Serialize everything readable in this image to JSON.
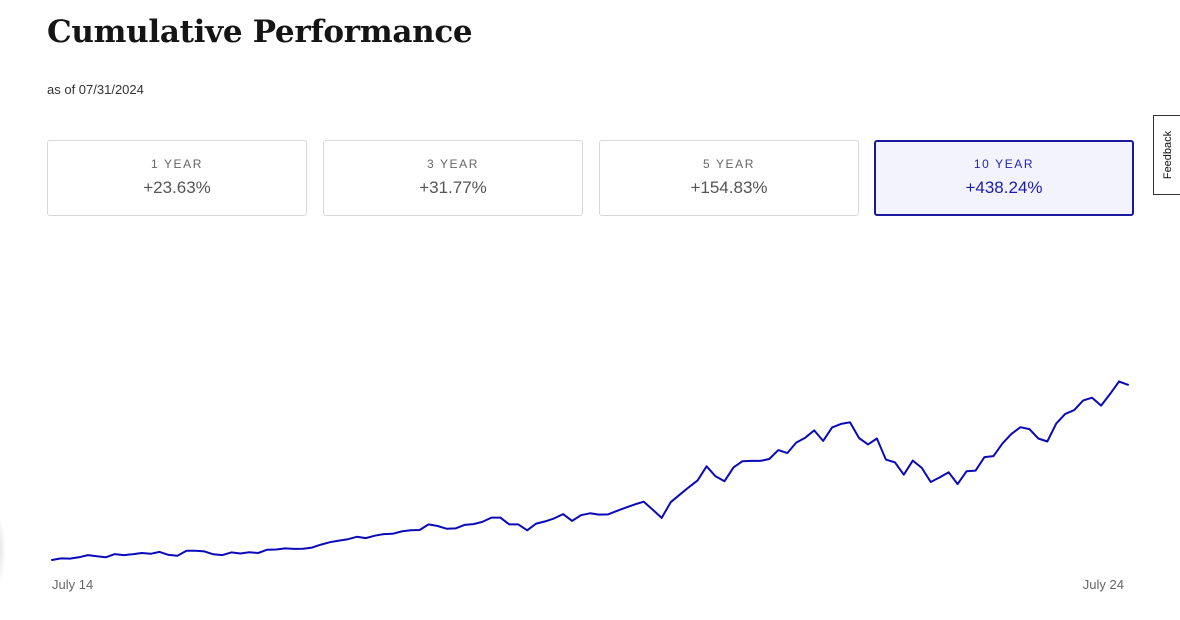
{
  "header": {
    "title": "Cumulative Performance",
    "as_of": "as of 07/31/2024"
  },
  "periods": [
    {
      "label": "1 YEAR",
      "value": "+23.63%",
      "active": false
    },
    {
      "label": "3 YEAR",
      "value": "+31.77%",
      "active": false
    },
    {
      "label": "5 YEAR",
      "value": "+154.83%",
      "active": false
    },
    {
      "label": "10 YEAR",
      "value": "+438.24%",
      "active": true
    }
  ],
  "feedback": {
    "label": "Feedback"
  },
  "colors": {
    "line": "#0a0ab8",
    "accent": "#1a1a9e"
  },
  "chart_data": {
    "type": "line",
    "title": "",
    "xlabel": "",
    "ylabel": "",
    "x_tick_labels": [
      "July 14",
      "July 24"
    ],
    "grid": false,
    "legend": "none",
    "ylim": [
      0,
      100
    ],
    "series": [
      {
        "color": "#0a0ab8",
        "values": [
          0.0,
          0.6,
          0.5,
          1.0,
          1.8,
          1.4,
          1.0,
          2.2,
          1.8,
          2.1,
          2.6,
          2.3,
          3.0,
          1.9,
          1.6,
          3.4,
          3.4,
          3.2,
          2.1,
          1.8,
          2.8,
          2.4,
          2.9,
          2.6,
          3.8,
          3.9,
          4.3,
          4.1,
          4.2,
          4.6,
          5.7,
          6.6,
          7.2,
          7.7,
          8.6,
          8.1,
          9.0,
          9.6,
          9.7,
          10.6,
          11.0,
          11.1,
          13.2,
          12.6,
          11.6,
          11.7,
          13.0,
          13.3,
          14.1,
          15.7,
          15.7,
          13.2,
          13.2,
          11.0,
          13.5,
          14.3,
          15.4,
          17.0,
          14.5,
          16.6,
          17.3,
          16.8,
          16.9,
          18.2,
          19.4,
          20.6,
          21.6,
          18.6,
          15.6,
          21.4,
          24.2,
          26.9,
          29.5,
          34.7,
          31.0,
          29.2,
          34.3,
          36.6,
          36.7,
          36.7,
          37.4,
          40.7,
          39.6,
          43.5,
          45.3,
          48.0,
          44.1,
          49.1,
          50.4,
          51.0,
          45.2,
          42.8,
          45.0,
          37.2,
          36.2,
          31.6,
          36.8,
          34.1,
          28.9,
          30.6,
          32.5,
          28.1,
          32.9,
          33.1,
          38.1,
          38.5,
          43.2,
          46.7,
          49.2,
          48.5,
          45.0,
          43.9,
          50.6,
          54.1,
          55.5,
          59.1,
          60.1,
          57.2,
          61.5,
          66.1,
          64.9
        ]
      }
    ]
  }
}
